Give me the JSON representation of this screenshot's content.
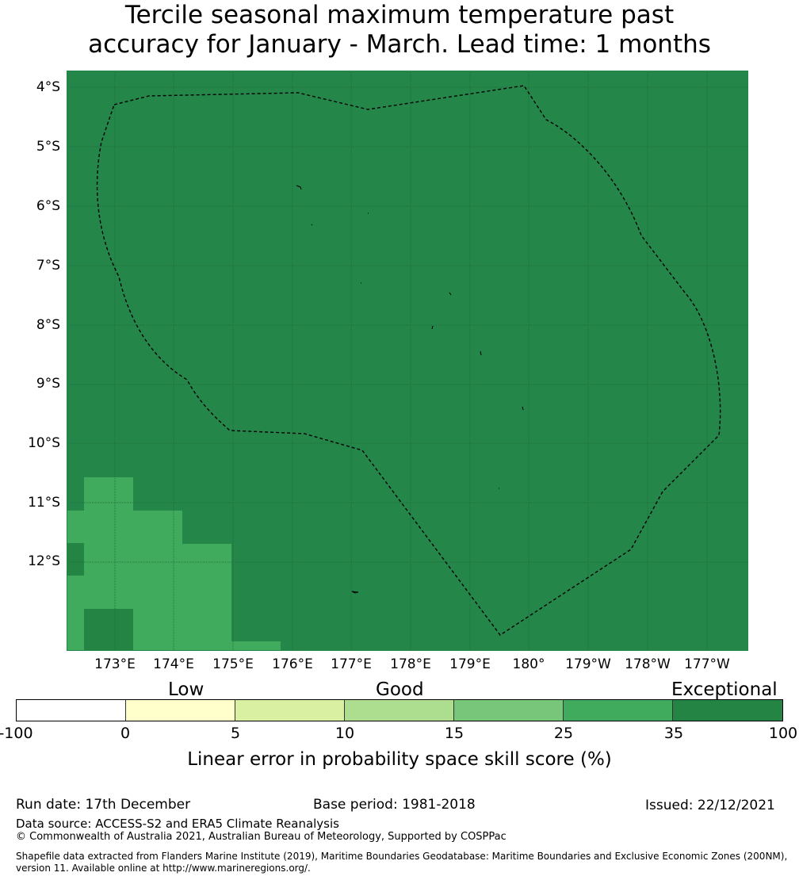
{
  "title": {
    "line1": "Tercile seasonal maximum temperature past",
    "line2": "accuracy for January - March. Lead time: 1 months"
  },
  "map": {
    "background_color": "#25864a",
    "lat_labels": [
      "4°S",
      "5°S",
      "6°S",
      "7°S",
      "8°S",
      "9°S",
      "10°S",
      "11°S",
      "12°S"
    ],
    "lon_labels": [
      "173°E",
      "174°E",
      "175°E",
      "176°E",
      "177°E",
      "178°E",
      "179°E",
      "180°",
      "179°W",
      "178°W",
      "177°W"
    ],
    "skill_regions": [
      {
        "category": "25-35",
        "color": "#41ab5d"
      },
      {
        "category": "35-100",
        "color": "#238443"
      }
    ],
    "eez_boundary": "dashed"
  },
  "legend": {
    "category_labels": {
      "low": "Low",
      "good": "Good",
      "exceptional": "Exceptional"
    },
    "segments": [
      {
        "from": -100,
        "to": 0,
        "color": "#ffffff"
      },
      {
        "from": 0,
        "to": 5,
        "color": "#ffffcc"
      },
      {
        "from": 5,
        "to": 10,
        "color": "#d9f0a3"
      },
      {
        "from": 10,
        "to": 15,
        "color": "#addd8e"
      },
      {
        "from": 15,
        "to": 25,
        "color": "#78c679"
      },
      {
        "from": 25,
        "to": 35,
        "color": "#41ab5d"
      },
      {
        "from": 35,
        "to": 100,
        "color": "#238443"
      }
    ],
    "tick_labels": [
      "-100",
      "0",
      "5",
      "10",
      "15",
      "25",
      "35",
      "100"
    ],
    "title": "Linear error in probability space skill score (%)"
  },
  "footer": {
    "run_date": "Run date: 17th December",
    "base_period": "Base period: 1981-2018",
    "issued": "Issued: 22/12/2021",
    "data_source": "Data source: ACCESS-S2 and ERA5 Climate Reanalysis",
    "copyright": "© Commonwealth of Australia 2021, Australian Bureau of Meteorology, Supported by COSPPac",
    "shapefile_line1": "Shapefile data extracted from Flanders Marine Institute (2019), Maritime Boundaries Geodatabase: Maritime Boundaries and Exclusive Economic Zones (200NM),",
    "shapefile_line2": "version 11. Available online at http://www.marineregions.org/."
  }
}
